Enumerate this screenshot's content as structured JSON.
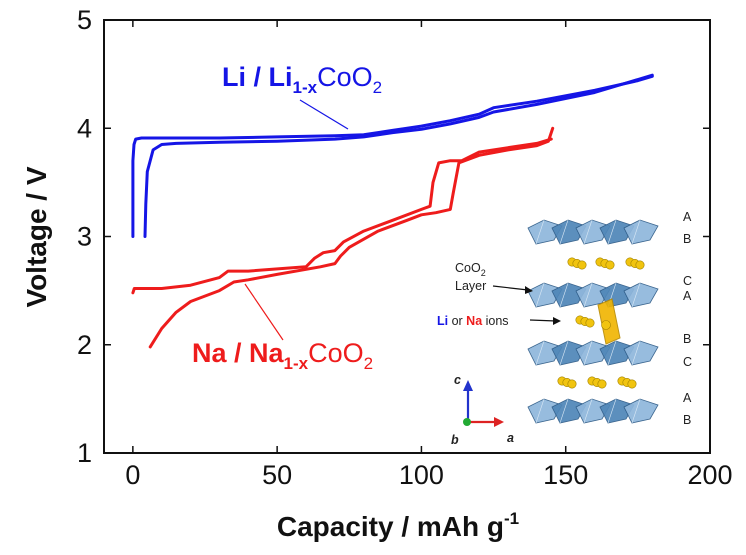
{
  "chart_data": {
    "type": "line",
    "xlabel": "Capacity  /  mAh g",
    "xlabel_sup": "-1",
    "ylabel": "Voltage  /  V",
    "xlim": [
      -10,
      200
    ],
    "ylim": [
      1,
      5
    ],
    "xticks": [
      "0",
      "50",
      "100",
      "150",
      "200"
    ],
    "xtick_values": [
      0,
      50,
      100,
      150,
      200
    ],
    "yticks": [
      "1",
      "2",
      "3",
      "4",
      "5"
    ],
    "ytick_values": [
      1,
      2,
      3,
      4,
      5
    ],
    "grid": false,
    "colors": {
      "li": "#1515e6",
      "na": "#ee1c1c"
    },
    "labels": {
      "li": {
        "pre": "Li / Li",
        "sub": "1-x",
        "post": "CoO",
        "sub2": "2"
      },
      "na": {
        "pre": "Na / Na",
        "sub": "1-x",
        "post": "CoO",
        "sub2": "2"
      }
    },
    "series": [
      {
        "name": "Li / Li1-xCoO2",
        "color": "#1515e6",
        "x": [
          0,
          0,
          0.4,
          1,
          3,
          10,
          30,
          50,
          70,
          80,
          90,
          100,
          110,
          120,
          125,
          140,
          160,
          175,
          180
        ],
        "y": [
          3.0,
          3.7,
          3.85,
          3.9,
          3.91,
          3.91,
          3.91,
          3.92,
          3.93,
          3.94,
          3.98,
          4.02,
          4.07,
          4.13,
          4.19,
          4.25,
          4.35,
          4.44,
          4.48
        ]
      },
      {
        "name": "Li / Li1-xCoO2",
        "color": "#1515e6",
        "x": [
          180,
          175,
          160,
          140,
          125,
          120,
          110,
          100,
          90,
          80,
          70,
          50,
          30,
          15,
          10,
          7,
          5,
          4.5,
          4.2
        ],
        "y": [
          4.49,
          4.45,
          4.33,
          4.22,
          4.15,
          4.1,
          4.04,
          3.99,
          3.96,
          3.92,
          3.9,
          3.88,
          3.87,
          3.86,
          3.85,
          3.8,
          3.6,
          3.3,
          3.0
        ]
      },
      {
        "name": "Na / Na1-xCoO2",
        "color": "#ee1c1c",
        "x": [
          0,
          0.5,
          10,
          20,
          30,
          33,
          40,
          60,
          63,
          66,
          70,
          73,
          80,
          90,
          100,
          103,
          104,
          106,
          110,
          114,
          120,
          130,
          140,
          145
        ],
        "y": [
          2.48,
          2.52,
          2.52,
          2.55,
          2.62,
          2.68,
          2.68,
          2.72,
          2.8,
          2.85,
          2.87,
          2.95,
          3.05,
          3.15,
          3.25,
          3.28,
          3.5,
          3.68,
          3.7,
          3.7,
          3.78,
          3.82,
          3.86,
          3.9
        ]
      },
      {
        "name": "Na / Na1-xCoO2",
        "color": "#ee1c1c",
        "x": [
          145.5,
          144,
          140,
          130,
          120,
          113,
          111,
          110,
          105,
          100,
          95,
          85,
          75,
          72,
          70,
          65,
          50,
          40,
          35,
          30,
          20,
          15,
          10,
          6
        ],
        "y": [
          4.0,
          3.88,
          3.84,
          3.8,
          3.75,
          3.68,
          3.4,
          3.25,
          3.22,
          3.2,
          3.15,
          3.05,
          2.9,
          2.82,
          2.75,
          2.72,
          2.65,
          2.6,
          2.58,
          2.5,
          2.4,
          2.3,
          2.15,
          1.98
        ]
      }
    ],
    "inset": {
      "stack_labels": [
        "A",
        "B",
        "C",
        "A",
        "B",
        "C",
        "A",
        "B"
      ],
      "layer_label_line1": "CoO",
      "layer_label_sub": "2",
      "layer_label_line2": "Layer",
      "ions_label_li": "Li",
      "ions_label_or": " or ",
      "ions_label_na": "Na",
      "ions_label_post": " ions",
      "axis_c": "c",
      "axis_a": "a",
      "axis_b": "b",
      "colors": {
        "octahedra": "#4f86b8",
        "octahedra_light": "#8fb7dc",
        "ions": "#f1c40f",
        "prism": "#f0b400",
        "axis_c": "#2233cc",
        "axis_a": "#dd2222",
        "axis_b": "#22aa33"
      }
    }
  }
}
